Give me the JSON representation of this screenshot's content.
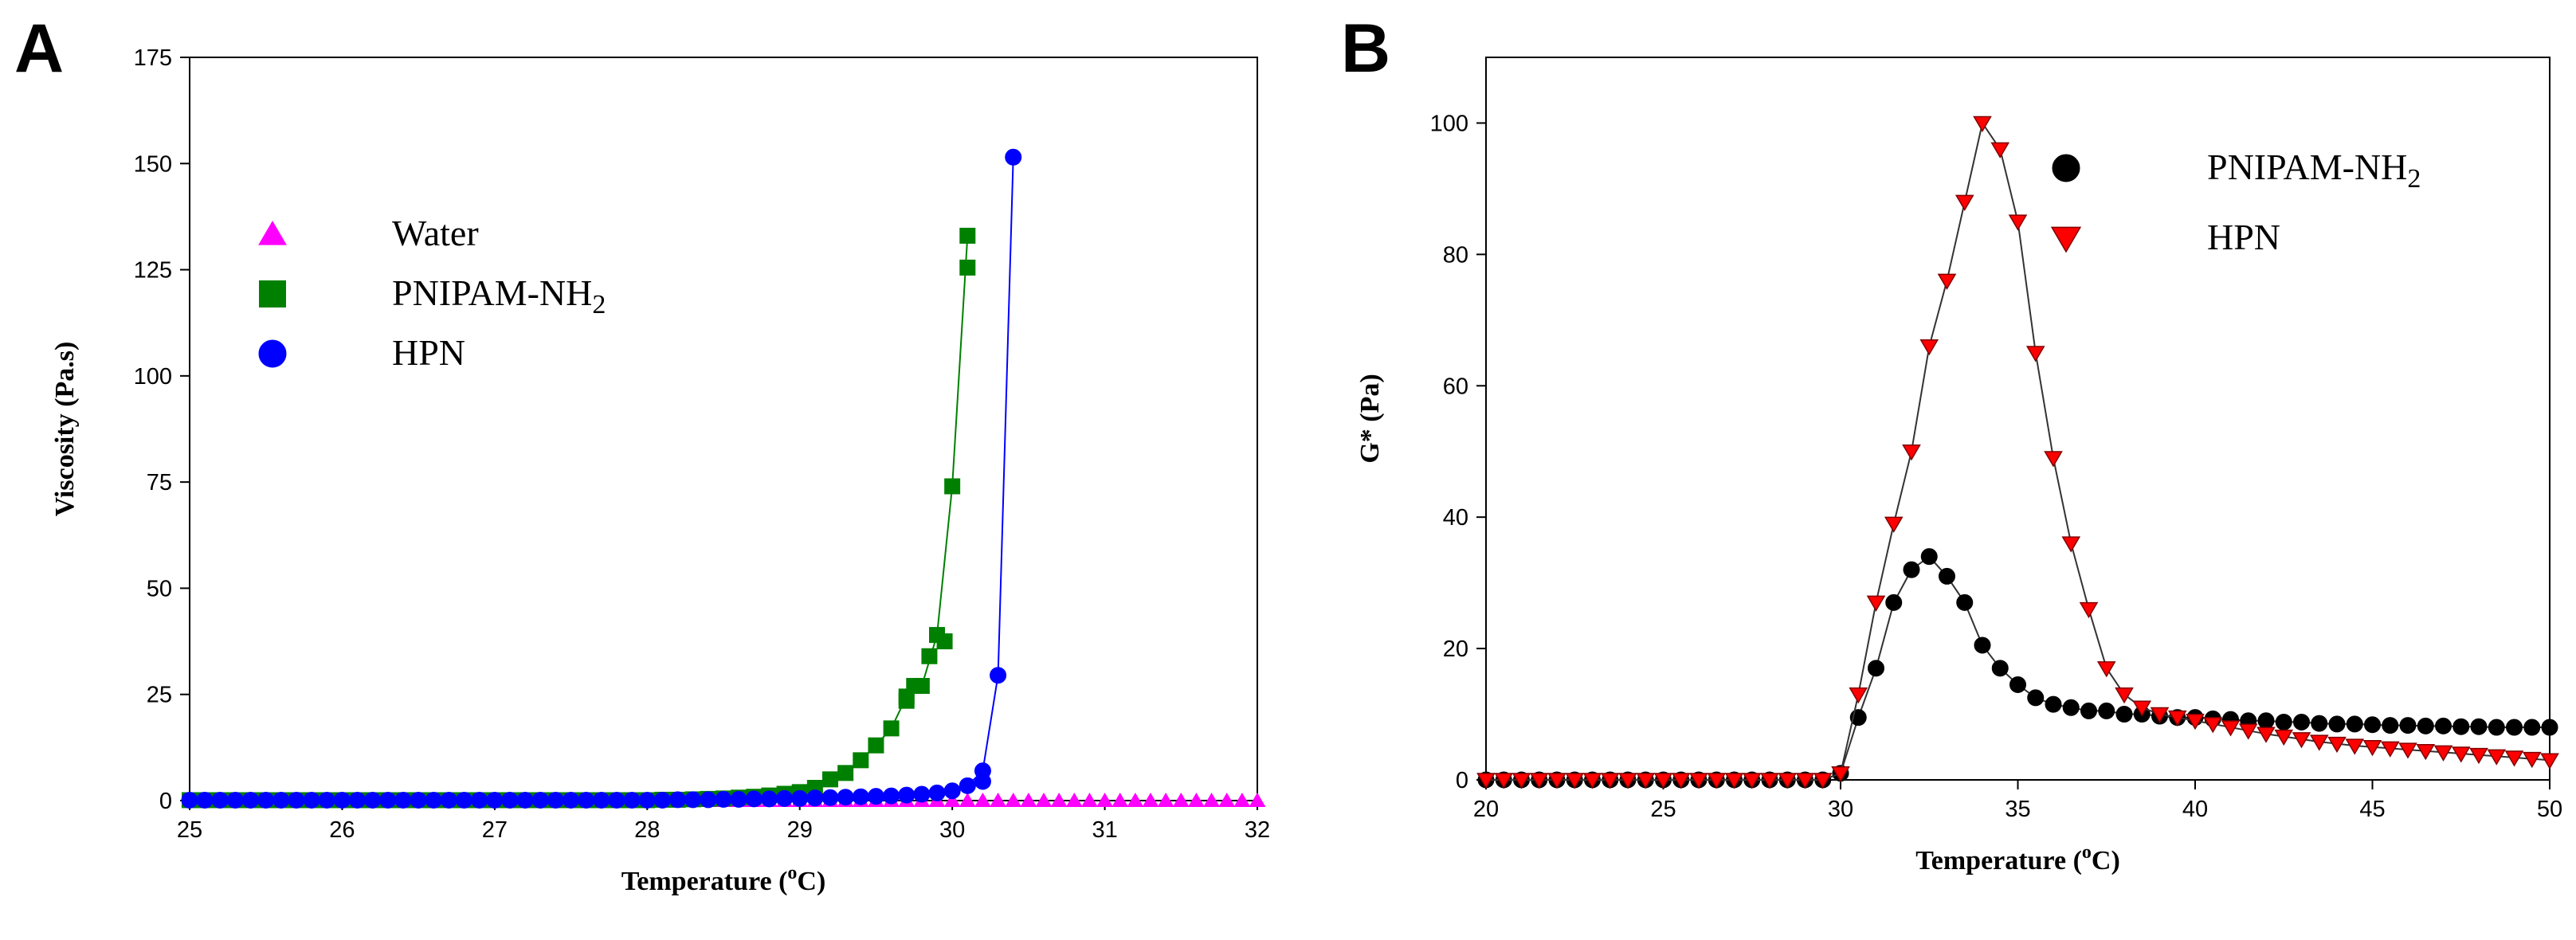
{
  "panels": {
    "a": {
      "label": "A"
    },
    "b": {
      "label": "B"
    }
  },
  "chart_data": [
    {
      "id": "chartA",
      "type": "line",
      "title": "",
      "xlabel": "Temperature (",
      "xlabel_sup": "o",
      "xlabel_unit": "C)",
      "ylabel": "Viscosity (Pa.s)",
      "xlim": [
        25,
        32
      ],
      "ylim": [
        0,
        175
      ],
      "xticks": [
        25,
        26,
        27,
        28,
        29,
        30,
        31,
        32
      ],
      "yticks": [
        0,
        25,
        50,
        75,
        100,
        125,
        150,
        175
      ],
      "grid": false,
      "legend_position": "upper-left",
      "series": [
        {
          "name": "Water",
          "legend_main": "Water",
          "legend_sub": "",
          "marker": "triangle-up",
          "color": "#ff00ff",
          "line": false,
          "x": [
            25.0,
            25.1,
            25.2,
            25.3,
            25.4,
            25.5,
            25.6,
            25.7,
            25.8,
            25.9,
            26.0,
            26.1,
            26.2,
            26.3,
            26.4,
            26.5,
            26.6,
            26.7,
            26.8,
            26.9,
            27.0,
            27.1,
            27.2,
            27.3,
            27.4,
            27.5,
            27.6,
            27.7,
            27.8,
            27.9,
            28.0,
            28.1,
            28.2,
            28.3,
            28.4,
            28.5,
            28.6,
            28.7,
            28.8,
            28.9,
            29.0,
            29.1,
            29.2,
            29.3,
            29.4,
            29.5,
            29.6,
            29.7,
            29.8,
            29.9,
            30.0,
            30.1,
            30.2,
            30.3,
            30.4,
            30.5,
            30.6,
            30.7,
            30.8,
            30.9,
            31.0,
            31.1,
            31.2,
            31.3,
            31.4,
            31.5,
            31.6,
            31.7,
            31.8,
            31.9,
            32.0
          ],
          "y": [
            0,
            0,
            0,
            0,
            0,
            0,
            0,
            0,
            0,
            0,
            0,
            0,
            0,
            0,
            0,
            0,
            0,
            0,
            0,
            0,
            0,
            0,
            0,
            0,
            0,
            0,
            0,
            0,
            0,
            0,
            0,
            0,
            0,
            0,
            0,
            0,
            0,
            0,
            0,
            0,
            0,
            0,
            0,
            0,
            0,
            0,
            0,
            0,
            0,
            0,
            0,
            0,
            0,
            0,
            0,
            0,
            0,
            0,
            0,
            0,
            0,
            0,
            0,
            0,
            0,
            0,
            0,
            0,
            0,
            0,
            0
          ]
        },
        {
          "name": "PNIPAM-NH2",
          "legend_main": "PNIPAM-NH",
          "legend_sub": "2",
          "marker": "square",
          "color": "#008000",
          "line": true,
          "x": [
            25.0,
            25.1,
            25.2,
            25.3,
            25.4,
            25.5,
            25.6,
            25.7,
            25.8,
            25.9,
            26.0,
            26.1,
            26.2,
            26.3,
            26.4,
            26.5,
            26.6,
            26.7,
            26.8,
            26.9,
            27.0,
            27.1,
            27.2,
            27.3,
            27.4,
            27.5,
            27.6,
            27.7,
            27.8,
            27.9,
            28.0,
            28.1,
            28.2,
            28.3,
            28.4,
            28.5,
            28.6,
            28.7,
            28.8,
            28.9,
            29.0,
            29.1,
            29.2,
            29.3,
            29.4,
            29.5,
            29.6,
            29.7,
            29.8,
            29.9,
            30.0,
            30.1
          ],
          "y": [
            0.1,
            0.1,
            0.1,
            0.1,
            0.1,
            0.1,
            0.1,
            0.1,
            0.1,
            0.1,
            0.1,
            0.1,
            0.1,
            0.1,
            0.1,
            0.1,
            0.1,
            0.1,
            0.1,
            0.1,
            0.1,
            0.1,
            0.1,
            0.1,
            0.1,
            0.1,
            0.1,
            0.1,
            0.1,
            0.1,
            0.1,
            0.2,
            0.2,
            0.3,
            0.4,
            0.5,
            0.7,
            0.9,
            1.2,
            1.6,
            2.0,
            3.0,
            5.0,
            6.5,
            9.5,
            13,
            17,
            24.5,
            27,
            39,
            74,
            133
          ]
        },
        {
          "name": "HPN",
          "legend_main": "HPN",
          "legend_sub": "",
          "marker": "circle",
          "color": "#0000ff",
          "line": true,
          "x": [
            25.0,
            25.1,
            25.2,
            25.3,
            25.4,
            25.5,
            25.6,
            25.7,
            25.8,
            25.9,
            26.0,
            26.1,
            26.2,
            26.3,
            26.4,
            26.5,
            26.6,
            26.7,
            26.8,
            26.9,
            27.0,
            27.1,
            27.2,
            27.3,
            27.4,
            27.5,
            27.6,
            27.7,
            27.8,
            27.9,
            28.0,
            28.1,
            28.2,
            28.3,
            28.4,
            28.5,
            28.6,
            28.7,
            28.8,
            28.9,
            29.0,
            29.1,
            29.2,
            29.3,
            29.4,
            29.5,
            29.6,
            29.7,
            29.8,
            29.9,
            30.0,
            30.1,
            30.2,
            30.3,
            30.4
          ],
          "y": [
            0.1,
            0.1,
            0.1,
            0.1,
            0.1,
            0.1,
            0.1,
            0.1,
            0.1,
            0.1,
            0.1,
            0.1,
            0.1,
            0.1,
            0.1,
            0.1,
            0.1,
            0.1,
            0.1,
            0.1,
            0.1,
            0.1,
            0.1,
            0.1,
            0.1,
            0.1,
            0.1,
            0.1,
            0.1,
            0.1,
            0.1,
            0.1,
            0.2,
            0.2,
            0.2,
            0.3,
            0.3,
            0.4,
            0.4,
            0.5,
            0.5,
            0.6,
            0.7,
            0.8,
            0.9,
            1.0,
            1.1,
            1.3,
            1.5,
            1.8,
            2.3,
            3.5,
            7.0,
            29.5,
            151.5
          ]
        },
        {
          "name": "PNIPAM-NH2 extra",
          "marker": "square",
          "color": "#008000",
          "line": false,
          "x": [
            29.95,
            30.1,
            29.85,
            29.75,
            29.7
          ],
          "y": [
            37.5,
            125.5,
            34,
            27,
            23.5
          ]
        },
        {
          "name": "HPN extra",
          "marker": "circle",
          "color": "#0000ff",
          "line": false,
          "x": [
            30.2
          ],
          "y": [
            4.5
          ]
        }
      ]
    },
    {
      "id": "chartB",
      "type": "line",
      "title": "",
      "xlabel": "Temperature (",
      "xlabel_sup": "o",
      "xlabel_unit": "C)",
      "ylabel": "G* (Pa)",
      "xlim": [
        20,
        50
      ],
      "ylim": [
        0,
        110
      ],
      "xticks": [
        20,
        25,
        30,
        35,
        40,
        45,
        50
      ],
      "yticks": [
        0,
        20,
        40,
        60,
        80,
        100
      ],
      "grid": false,
      "legend_position": "upper-right",
      "series": [
        {
          "name": "PNIPAM-NH2",
          "legend_main": "PNIPAM-NH",
          "legend_sub": "2",
          "marker": "circle",
          "color": "#000000",
          "line": true,
          "x": [
            20,
            20.5,
            21,
            21.5,
            22,
            22.5,
            23,
            23.5,
            24,
            24.5,
            25,
            25.5,
            26,
            26.5,
            27,
            27.5,
            28,
            28.5,
            29,
            29.5,
            30,
            30.5,
            31,
            31.5,
            32,
            32.5,
            33,
            33.5,
            34,
            34.5,
            35,
            35.5,
            36,
            36.5,
            37,
            37.5,
            38,
            38.5,
            39,
            39.5,
            40,
            40.5,
            41,
            41.5,
            42,
            42.5,
            43,
            43.5,
            44,
            44.5,
            45,
            45.5,
            46,
            46.5,
            47,
            47.5,
            48,
            48.5,
            49,
            49.5,
            50
          ],
          "y": [
            0,
            0,
            0,
            0,
            0,
            0,
            0,
            0,
            0,
            0,
            0,
            0,
            0,
            0,
            0,
            0,
            0,
            0,
            0,
            0,
            1,
            9.5,
            17,
            27,
            32,
            34,
            31,
            27,
            20.5,
            17,
            14.5,
            12.5,
            11.5,
            11,
            10.5,
            10.5,
            10,
            10,
            9.7,
            9.5,
            9.5,
            9.3,
            9.2,
            9,
            9,
            8.8,
            8.8,
            8.6,
            8.5,
            8.5,
            8.4,
            8.3,
            8.3,
            8.2,
            8.2,
            8.1,
            8.1,
            8,
            8,
            8,
            8
          ]
        },
        {
          "name": "HPN",
          "legend_main": "HPN",
          "legend_sub": "",
          "marker": "triangle-down",
          "color": "#ff0000",
          "line": true,
          "x": [
            20,
            20.5,
            21,
            21.5,
            22,
            22.5,
            23,
            23.5,
            24,
            24.5,
            25,
            25.5,
            26,
            26.5,
            27,
            27.5,
            28,
            28.5,
            29,
            29.5,
            30,
            30.5,
            31,
            31.5,
            32,
            32.5,
            33,
            33.5,
            34,
            34.5,
            35,
            35.5,
            36,
            36.5,
            37,
            37.5,
            38,
            38.5,
            39,
            39.5,
            40,
            40.5,
            41,
            41.5,
            42,
            42.5,
            43,
            43.5,
            44,
            44.5,
            45,
            45.5,
            46,
            46.5,
            47,
            47.5,
            48,
            48.5,
            49,
            49.5,
            50
          ],
          "y": [
            0,
            0,
            0,
            0,
            0,
            0,
            0,
            0,
            0,
            0,
            0,
            0,
            0,
            0,
            0,
            0,
            0,
            0,
            0,
            0,
            1,
            13,
            27,
            39,
            50,
            66,
            76,
            88,
            100,
            96,
            85,
            65,
            49,
            36,
            26,
            17,
            13,
            11,
            10,
            9.5,
            9,
            8.5,
            8,
            7.5,
            7,
            6.6,
            6.2,
            5.8,
            5.5,
            5.2,
            5,
            4.8,
            4.6,
            4.4,
            4.2,
            4,
            3.8,
            3.6,
            3.4,
            3.2,
            3
          ]
        }
      ]
    }
  ]
}
